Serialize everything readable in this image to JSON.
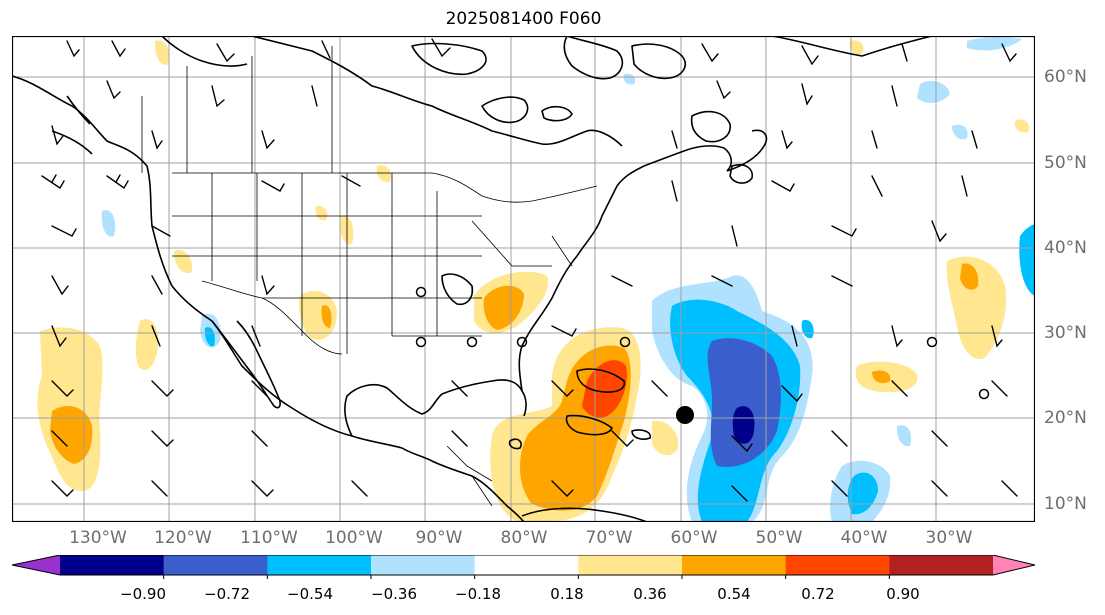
{
  "title": "2025081400 F060",
  "lat_labels": [
    "60°N",
    "50°N",
    "40°N",
    "30°N",
    "20°N",
    "10°N"
  ],
  "lon_labels": [
    "130°W",
    "120°W",
    "110°W",
    "100°W",
    "90°W",
    "80°W",
    "70°W",
    "60°W",
    "50°W",
    "40°W",
    "30°W"
  ],
  "colorbar": {
    "ticks": [
      "−0.90",
      "−0.72",
      "−0.54",
      "−0.36",
      "−0.18",
      "0.18",
      "0.36",
      "0.54",
      "0.72",
      "0.90"
    ],
    "colors": [
      "#9932cc",
      "#00008b",
      "#3a5fcd",
      "#00bfff",
      "#b0e2ff",
      "#ffffff",
      "#ffe68f",
      "#ffa500",
      "#ff4500",
      "#b22222",
      "#ff83b4"
    ],
    "extend": "both"
  },
  "style": {
    "axis_label_color": "#6e6e6e",
    "grid_color": "#a0a0a0"
  }
}
